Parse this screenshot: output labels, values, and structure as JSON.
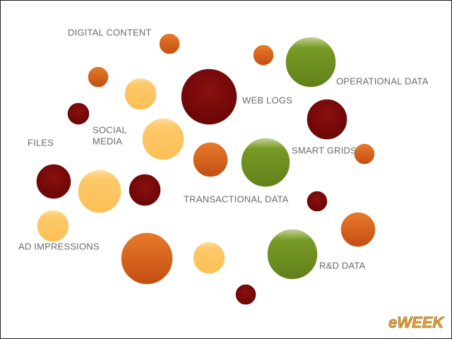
{
  "labels": {
    "digital_content": "DIGITAL CONTENT",
    "operational_data": "OPERATIONAL DATA",
    "web_logs": "WEB LOGS",
    "social_media": [
      "SOCIAL",
      "MEDIA"
    ],
    "files": "FILES",
    "smart_grids": "SMART GRIDS",
    "transactional_data": "TRANSACTIONAL DATA",
    "ad_impressions": "AD IMPRESSIONS",
    "rd_data": "R&D DATA"
  },
  "logo": "eWEEK"
}
